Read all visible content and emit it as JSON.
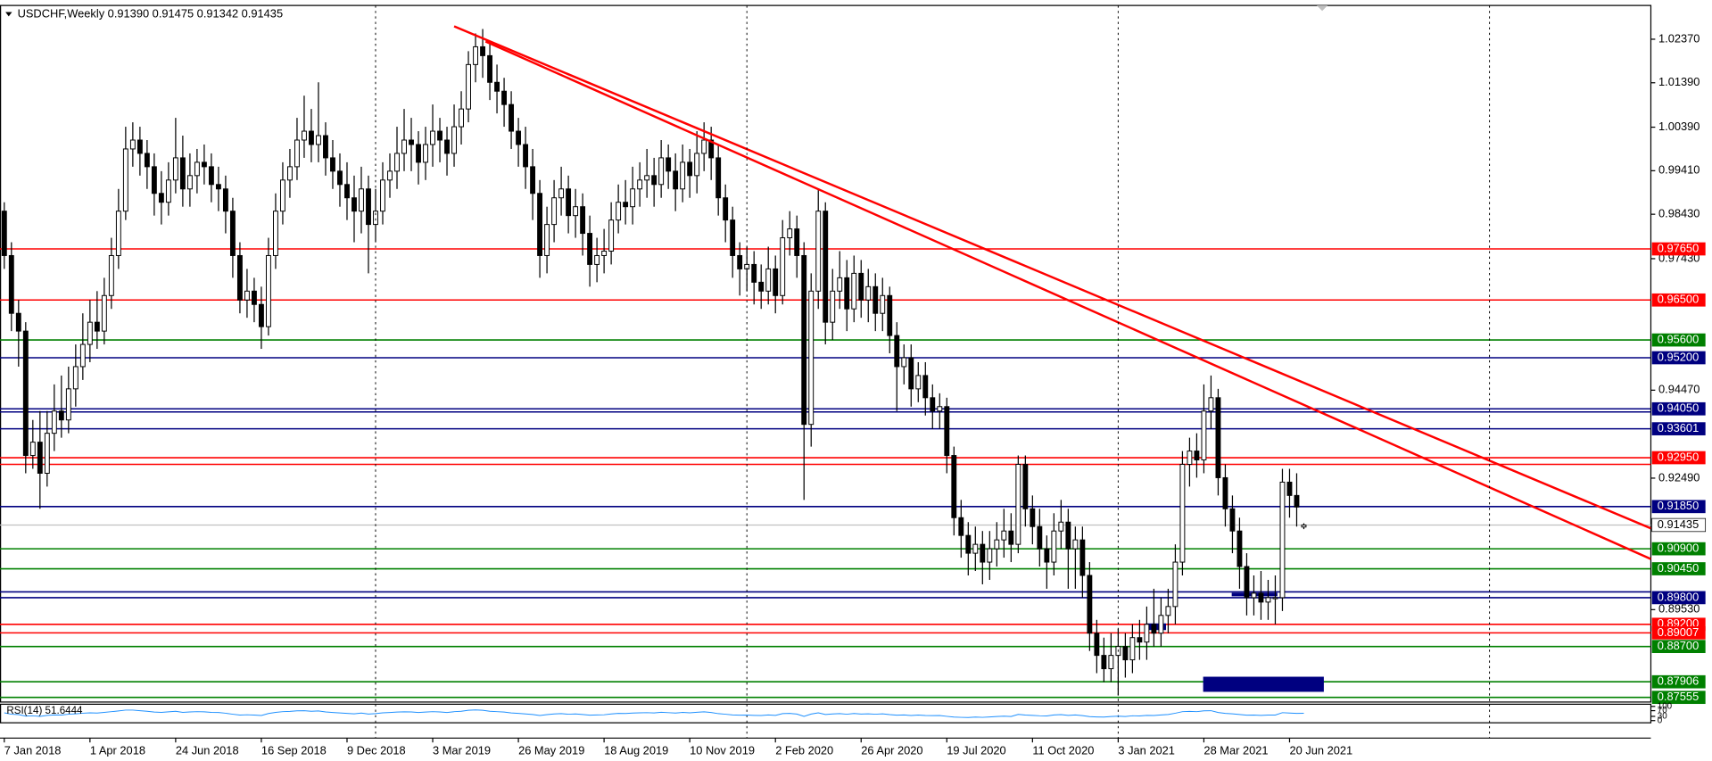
{
  "chart_data": {
    "type": "candlestick",
    "title": "USDCHF,Weekly 0.91390 0.91475 0.91342 0.91435",
    "categories": [
      "7 Jan 2018",
      null,
      null,
      null,
      null,
      null,
      null,
      null,
      null,
      null,
      null,
      null,
      "1 Apr 2018",
      null,
      null,
      null,
      null,
      null,
      null,
      null,
      null,
      null,
      null,
      null,
      "24 Jun 2018",
      null,
      null,
      null,
      null,
      null,
      null,
      null,
      null,
      null,
      null,
      null,
      "16 Sep 2018",
      null,
      null,
      null,
      null,
      null,
      null,
      null,
      null,
      null,
      null,
      null,
      "9 Dec 2018",
      null,
      null,
      null,
      null,
      null,
      null,
      null,
      null,
      null,
      null,
      null,
      "3 Mar 2019",
      null,
      null,
      null,
      null,
      null,
      null,
      null,
      null,
      null,
      null,
      null,
      "26 May 2019",
      null,
      null,
      null,
      null,
      null,
      null,
      null,
      null,
      null,
      null,
      null,
      "18 Aug 2019",
      null,
      null,
      null,
      null,
      null,
      null,
      null,
      null,
      null,
      null,
      null,
      "10 Nov 2019",
      null,
      null,
      null,
      null,
      null,
      null,
      null,
      null,
      null,
      null,
      null,
      "2 Feb 2020",
      null,
      null,
      null,
      null,
      null,
      null,
      null,
      null,
      null,
      null,
      null,
      "26 Apr 2020",
      null,
      null,
      null,
      null,
      null,
      null,
      null,
      null,
      null,
      null,
      null,
      "19 Jul 2020",
      null,
      null,
      null,
      null,
      null,
      null,
      null,
      null,
      null,
      null,
      null,
      "11 Oct 2020",
      null,
      null,
      null,
      null,
      null,
      null,
      null,
      null,
      null,
      null,
      null,
      "3 Jan 2021",
      null,
      null,
      null,
      null,
      null,
      null,
      null,
      null,
      null,
      null,
      null,
      "28 Mar 2021",
      null,
      null,
      null,
      null,
      null,
      null,
      null,
      null,
      null,
      null,
      null,
      "20 Jun 2021",
      null,
      null
    ],
    "open": [
      0.985,
      0.975,
      0.962,
      0.958,
      0.93,
      0.933,
      0.926,
      0.935,
      0.94,
      0.938,
      0.945,
      0.95,
      0.955,
      0.96,
      0.958,
      0.966,
      0.975,
      0.985,
      0.999,
      1.001,
      0.998,
      0.995,
      0.989,
      0.987,
      0.992,
      0.997,
      0.99,
      0.993,
      0.996,
      0.995,
      0.991,
      0.99,
      0.985,
      0.975,
      0.965,
      0.967,
      0.964,
      0.959,
      0.975,
      0.985,
      0.992,
      0.995,
      1.001,
      1.003,
      1.0,
      1.002,
      0.997,
      0.994,
      0.991,
      0.988,
      0.985,
      0.99,
      0.982,
      0.985,
      0.992,
      0.994,
      0.998,
      1.001,
      1.0,
      0.996,
      1.0,
      1.003,
      1.001,
      0.998,
      1.004,
      1.008,
      1.018,
      1.022,
      1.02,
      1.014,
      1.012,
      1.009,
      1.003,
      1.0,
      0.995,
      0.989,
      0.975,
      0.982,
      0.988,
      0.99,
      0.984,
      0.986,
      0.98,
      0.973,
      0.975,
      0.976,
      0.983,
      0.987,
      0.986,
      0.99,
      0.992,
      0.993,
      0.991,
      0.997,
      0.994,
      0.99,
      0.996,
      0.993,
      0.998,
      1.001,
      0.997,
      0.988,
      0.983,
      0.975,
      0.972,
      0.973,
      0.969,
      0.967,
      0.972,
      0.966,
      0.979,
      0.981,
      0.975,
      0.937,
      0.967,
      0.985,
      0.96,
      0.967,
      0.97,
      0.963,
      0.971,
      0.965,
      0.968,
      0.962,
      0.966,
      0.957,
      0.95,
      0.952,
      0.945,
      0.948,
      0.943,
      0.94,
      0.941,
      0.93,
      0.916,
      0.912,
      0.908,
      0.91,
      0.906,
      0.909,
      0.911,
      0.913,
      0.91,
      0.928,
      0.918,
      0.914,
      0.909,
      0.906,
      0.913,
      0.915,
      0.909,
      0.911,
      0.903,
      0.89,
      0.885,
      0.882,
      0.885,
      0.887,
      0.884,
      0.889,
      0.888,
      0.892,
      0.89,
      0.894,
      0.896,
      0.906,
      0.928,
      0.931,
      0.929,
      0.94,
      0.943,
      0.925,
      0.918,
      0.913,
      0.905,
      0.898,
      0.899,
      0.897,
      0.898,
      0.898,
      0.924,
      0.921,
      0.9139
    ],
    "high": [
      0.987,
      0.978,
      0.965,
      0.96,
      0.938,
      0.94,
      0.94,
      0.946,
      0.948,
      0.95,
      0.955,
      0.962,
      0.965,
      0.967,
      0.97,
      0.979,
      0.99,
      1.004,
      1.005,
      1.004,
      1.001,
      0.998,
      0.994,
      0.996,
      1.006,
      1.002,
      0.998,
      0.999,
      1.0,
      0.998,
      0.995,
      0.993,
      0.988,
      0.978,
      0.972,
      0.97,
      0.968,
      0.979,
      0.989,
      0.996,
      0.999,
      1.006,
      1.011,
      1.008,
      1.014,
      1.005,
      1.001,
      0.998,
      0.996,
      0.993,
      0.995,
      0.993,
      0.99,
      0.996,
      0.998,
      1.004,
      1.008,
      1.006,
      1.003,
      1.004,
      1.009,
      1.006,
      1.004,
      1.009,
      1.012,
      1.021,
      1.025,
      1.026,
      1.023,
      1.018,
      1.015,
      1.012,
      1.006,
      1.004,
      0.999,
      0.992,
      0.986,
      0.992,
      0.995,
      0.993,
      0.99,
      0.989,
      0.984,
      0.979,
      0.981,
      0.987,
      0.991,
      0.992,
      0.995,
      0.996,
      0.999,
      0.997,
      1.001,
      1.0,
      0.998,
      1.0,
      0.999,
      1.003,
      1.005,
      1.004,
      1.0,
      0.991,
      0.986,
      0.978,
      0.977,
      0.976,
      0.973,
      0.977,
      0.975,
      0.983,
      0.985,
      0.984,
      0.978,
      0.971,
      0.99,
      0.987,
      0.972,
      0.976,
      0.974,
      0.975,
      0.974,
      0.972,
      0.971,
      0.97,
      0.968,
      0.96,
      0.955,
      0.955,
      0.951,
      0.951,
      0.946,
      0.944,
      0.943,
      0.932,
      0.92,
      0.915,
      0.914,
      0.913,
      0.913,
      0.915,
      0.918,
      0.917,
      0.93,
      0.93,
      0.921,
      0.918,
      0.912,
      0.917,
      0.92,
      0.918,
      0.914,
      0.914,
      0.906,
      0.893,
      0.889,
      0.89,
      0.891,
      0.89,
      0.892,
      0.893,
      0.896,
      0.9,
      0.898,
      0.9,
      0.91,
      0.931,
      0.934,
      0.935,
      0.946,
      0.948,
      0.945,
      0.928,
      0.921,
      0.916,
      0.908,
      0.903,
      0.904,
      0.902,
      0.903,
      0.927,
      0.927,
      0.926,
      0.91475
    ],
    "low": [
      0.972,
      0.958,
      0.95,
      0.926,
      0.927,
      0.918,
      0.923,
      0.931,
      0.934,
      0.935,
      0.941,
      0.947,
      0.951,
      0.954,
      0.955,
      0.963,
      0.972,
      0.983,
      0.995,
      0.993,
      0.99,
      0.984,
      0.982,
      0.984,
      0.989,
      0.986,
      0.986,
      0.989,
      0.991,
      0.987,
      0.985,
      0.98,
      0.97,
      0.962,
      0.961,
      0.96,
      0.954,
      0.957,
      0.972,
      0.982,
      0.988,
      0.992,
      0.997,
      0.996,
      0.996,
      0.993,
      0.99,
      0.986,
      0.983,
      0.978,
      0.98,
      0.971,
      0.978,
      0.982,
      0.988,
      0.99,
      0.994,
      0.994,
      0.991,
      0.992,
      0.995,
      0.996,
      0.993,
      0.995,
      1.0,
      1.005,
      1.014,
      1.015,
      1.01,
      1.007,
      1.004,
      0.999,
      0.995,
      0.99,
      0.983,
      0.97,
      0.971,
      0.978,
      0.984,
      0.98,
      0.979,
      0.975,
      0.968,
      0.969,
      0.971,
      0.973,
      0.98,
      0.982,
      0.982,
      0.986,
      0.988,
      0.986,
      0.988,
      0.99,
      0.985,
      0.987,
      0.988,
      0.989,
      0.994,
      0.992,
      0.984,
      0.978,
      0.97,
      0.966,
      0.967,
      0.964,
      0.963,
      0.964,
      0.962,
      0.964,
      0.975,
      0.97,
      0.92,
      0.932,
      0.963,
      0.955,
      0.956,
      0.963,
      0.958,
      0.96,
      0.961,
      0.96,
      0.958,
      0.958,
      0.953,
      0.94,
      0.946,
      0.941,
      0.942,
      0.939,
      0.936,
      0.936,
      0.926,
      0.912,
      0.907,
      0.903,
      0.904,
      0.901,
      0.902,
      0.905,
      0.907,
      0.906,
      0.908,
      0.914,
      0.91,
      0.905,
      0.9,
      0.903,
      0.909,
      0.9,
      0.9,
      0.898,
      0.886,
      0.881,
      0.879,
      0.879,
      0.876,
      0.88,
      0.881,
      0.884,
      0.884,
      0.887,
      0.887,
      0.89,
      0.892,
      0.903,
      0.923,
      0.925,
      0.926,
      0.936,
      0.921,
      0.914,
      0.908,
      0.9,
      0.894,
      0.894,
      0.893,
      0.893,
      0.892,
      0.895,
      0.916,
      0.914,
      0.91342
    ],
    "close": [
      0.975,
      0.962,
      0.958,
      0.93,
      0.933,
      0.926,
      0.935,
      0.94,
      0.938,
      0.945,
      0.95,
      0.955,
      0.96,
      0.958,
      0.966,
      0.975,
      0.985,
      0.999,
      1.001,
      0.998,
      0.995,
      0.989,
      0.987,
      0.992,
      0.997,
      0.99,
      0.993,
      0.996,
      0.995,
      0.991,
      0.99,
      0.985,
      0.975,
      0.965,
      0.967,
      0.964,
      0.959,
      0.975,
      0.985,
      0.992,
      0.995,
      1.001,
      1.003,
      1.0,
      1.002,
      0.997,
      0.994,
      0.991,
      0.988,
      0.985,
      0.99,
      0.982,
      0.985,
      0.992,
      0.994,
      0.998,
      1.001,
      1.0,
      0.996,
      1.0,
      1.003,
      1.001,
      0.998,
      1.004,
      1.008,
      1.018,
      1.022,
      1.02,
      1.014,
      1.012,
      1.009,
      1.003,
      1.0,
      0.995,
      0.989,
      0.975,
      0.982,
      0.988,
      0.99,
      0.984,
      0.986,
      0.98,
      0.973,
      0.975,
      0.976,
      0.983,
      0.987,
      0.986,
      0.99,
      0.992,
      0.993,
      0.991,
      0.997,
      0.994,
      0.99,
      0.996,
      0.993,
      0.998,
      1.001,
      0.997,
      0.988,
      0.983,
      0.975,
      0.972,
      0.973,
      0.969,
      0.967,
      0.972,
      0.966,
      0.979,
      0.981,
      0.975,
      0.937,
      0.967,
      0.985,
      0.96,
      0.967,
      0.97,
      0.963,
      0.971,
      0.965,
      0.968,
      0.962,
      0.966,
      0.957,
      0.95,
      0.952,
      0.945,
      0.948,
      0.943,
      0.94,
      0.941,
      0.93,
      0.916,
      0.912,
      0.908,
      0.91,
      0.906,
      0.909,
      0.911,
      0.913,
      0.91,
      0.928,
      0.918,
      0.914,
      0.909,
      0.906,
      0.913,
      0.915,
      0.909,
      0.911,
      0.903,
      0.89,
      0.885,
      0.882,
      0.885,
      0.887,
      0.884,
      0.889,
      0.888,
      0.892,
      0.89,
      0.894,
      0.896,
      0.906,
      0.928,
      0.931,
      0.929,
      0.94,
      0.943,
      0.925,
      0.918,
      0.913,
      0.905,
      0.898,
      0.899,
      0.897,
      0.898,
      0.898,
      0.924,
      0.921,
      0.9184,
      0.91435
    ],
    "up_color": "#ffffff",
    "down_color": "#000000",
    "wick_color": "#000000",
    "xlim": [
      -0.6,
      230.6
    ],
    "ylim": [
      0.8745,
      1.0313
    ],
    "yticks": [
      {
        "value": 1.0237,
        "label": "1.02370"
      },
      {
        "value": 1.0139,
        "label": "1.01390"
      },
      {
        "value": 1.0039,
        "label": "1.00390"
      },
      {
        "value": 0.9941,
        "label": "0.99410"
      },
      {
        "value": 0.9843,
        "label": "0.98430"
      },
      {
        "value": 0.9743,
        "label": "0.97430"
      },
      {
        "value": 0.9447,
        "label": "0.94470"
      },
      {
        "value": 0.9249,
        "label": "0.92490"
      },
      {
        "value": 0.8953,
        "label": "0.89530"
      }
    ],
    "vgrid": [
      52,
      104,
      156,
      208
    ],
    "levels": [
      {
        "value": 0.9765,
        "label": "0.97650",
        "color": "#ff0000"
      },
      {
        "value": 0.965,
        "label": "0.96500",
        "color": "#ff0000"
      },
      {
        "value": 0.956,
        "label": "0.95600",
        "color": "#008000"
      },
      {
        "value": 0.952,
        "label": "0.95200",
        "color": "#000080"
      },
      {
        "value": 0.9398,
        "color": "#000080"
      },
      {
        "value": 0.9405,
        "label": "0.94050",
        "color": "#000080"
      },
      {
        "value": 0.93601,
        "label": "0.93601",
        "color": "#000080"
      },
      {
        "value": 0.928,
        "color": "#ff0000"
      },
      {
        "value": 0.9295,
        "label": "0.92950",
        "color": "#ff0000"
      },
      {
        "value": 0.9185,
        "label": "0.91850",
        "color": "#000080"
      },
      {
        "value": 0.909,
        "label": "0.90900",
        "color": "#008000"
      },
      {
        "value": 0.9045,
        "label": "0.90450",
        "color": "#008000"
      },
      {
        "value": 0.8993,
        "color": "#000080"
      },
      {
        "value": 0.898,
        "label": "0.89800",
        "color": "#000080"
      },
      {
        "value": 0.892,
        "label": "0.89200",
        "color": "#ff0000"
      },
      {
        "value": 0.89007,
        "label": "0.89007",
        "color": "#ff0000"
      },
      {
        "value": 0.887,
        "label": "0.88700",
        "color": "#008000"
      },
      {
        "value": 0.87906,
        "label": "0.87906",
        "color": "#008000"
      },
      {
        "value": 0.87555,
        "label": "0.87555",
        "color": "#008000"
      }
    ],
    "price_line": {
      "value": 0.91435,
      "label": "0.91435",
      "color": "#c0c0c0"
    },
    "trendlines": [
      {
        "x": [
          63,
          230.6
        ],
        "y": [
          1.0266,
          0.9136
        ],
        "color": "#ff0000"
      },
      {
        "x": [
          67.4,
          230.6
        ],
        "y": [
          1.0232,
          0.9067
        ],
        "color": "#ff0000"
      }
    ],
    "rects": [
      {
        "x": [
          167.9,
          184.8
        ],
        "y": [
          0.8768,
          0.8802
        ],
        "color": "#000080"
      },
      {
        "x": [
          171.9,
          178.3
        ],
        "y": [
          0.8983,
          0.8991
        ],
        "color": "#000080"
      },
      {
        "x": [
          159.9,
          162.7
        ],
        "y": [
          0.8907,
          0.8922
        ],
        "color": "#000080"
      }
    ],
    "rsi": {
      "label": "RSI(14) 51.6444",
      "color": "#1e90ff",
      "ylim": [
        0,
        100
      ],
      "yticks": [
        100,
        70,
        30,
        0
      ],
      "values": [
        55,
        45,
        42,
        32,
        34,
        30,
        37,
        40,
        39,
        45,
        48,
        52,
        55,
        53,
        58,
        63,
        68,
        74,
        74,
        70,
        66,
        60,
        58,
        62,
        66,
        58,
        61,
        63,
        62,
        58,
        57,
        52,
        45,
        39,
        41,
        39,
        36,
        50,
        58,
        63,
        65,
        69,
        70,
        66,
        68,
        61,
        57,
        54,
        51,
        48,
        53,
        46,
        49,
        55,
        57,
        60,
        62,
        61,
        57,
        60,
        63,
        61,
        57,
        63,
        66,
        73,
        75,
        73,
        66,
        63,
        60,
        54,
        51,
        47,
        43,
        36,
        42,
        47,
        49,
        45,
        47,
        43,
        38,
        40,
        41,
        47,
        51,
        50,
        53,
        55,
        56,
        54,
        59,
        56,
        53,
        58,
        55,
        59,
        62,
        57,
        49,
        45,
        40,
        38,
        39,
        37,
        36,
        40,
        37,
        49,
        51,
        46,
        30,
        46,
        55,
        43,
        47,
        49,
        45,
        50,
        46,
        48,
        45,
        48,
        42,
        38,
        40,
        36,
        39,
        36,
        35,
        36,
        30,
        25,
        23,
        22,
        25,
        23,
        26,
        29,
        31,
        29,
        44,
        39,
        37,
        34,
        33,
        40,
        42,
        37,
        40,
        35,
        28,
        26,
        25,
        29,
        31,
        29,
        34,
        33,
        37,
        36,
        40,
        43,
        52,
        63,
        65,
        63,
        69,
        70,
        57,
        51,
        48,
        43,
        38,
        39,
        37,
        39,
        39,
        56,
        53,
        51,
        51.6444
      ]
    }
  }
}
